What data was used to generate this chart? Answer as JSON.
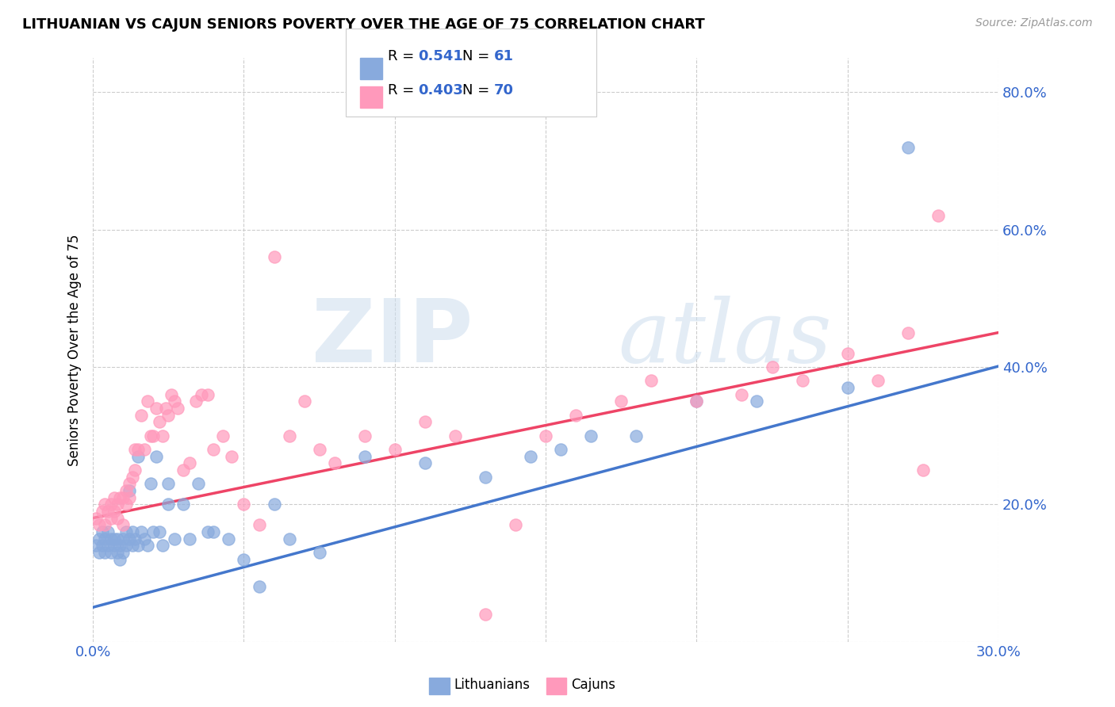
{
  "title": "LITHUANIAN VS CAJUN SENIORS POVERTY OVER THE AGE OF 75 CORRELATION CHART",
  "source": "Source: ZipAtlas.com",
  "ylabel": "Seniors Poverty Over the Age of 75",
  "xlim": [
    0.0,
    0.3
  ],
  "ylim": [
    0.0,
    0.85
  ],
  "x_ticks": [
    0.0,
    0.05,
    0.1,
    0.15,
    0.2,
    0.25,
    0.3
  ],
  "y_ticks_right": [
    0.0,
    0.2,
    0.4,
    0.6,
    0.8
  ],
  "legend_R1": "0.541",
  "legend_N1": "61",
  "legend_R2": "0.403",
  "legend_N2": "70",
  "blue_color": "#88AADD",
  "pink_color": "#FF99BB",
  "trend_blue": "#4477CC",
  "trend_pink": "#EE4466",
  "watermark_zip": "ZIP",
  "watermark_atlas": "atlas",
  "blue_intercept": 0.05,
  "blue_slope": 1.17,
  "pink_intercept": 0.18,
  "pink_slope": 0.9,
  "lithuanians_x": [
    0.001,
    0.002,
    0.002,
    0.003,
    0.003,
    0.004,
    0.004,
    0.005,
    0.005,
    0.006,
    0.006,
    0.007,
    0.007,
    0.008,
    0.008,
    0.009,
    0.009,
    0.01,
    0.01,
    0.011,
    0.011,
    0.012,
    0.012,
    0.013,
    0.013,
    0.014,
    0.015,
    0.015,
    0.016,
    0.017,
    0.018,
    0.019,
    0.02,
    0.021,
    0.022,
    0.023,
    0.025,
    0.025,
    0.027,
    0.03,
    0.032,
    0.035,
    0.038,
    0.04,
    0.045,
    0.05,
    0.055,
    0.06,
    0.065,
    0.075,
    0.09,
    0.11,
    0.13,
    0.145,
    0.155,
    0.165,
    0.18,
    0.2,
    0.22,
    0.25,
    0.27
  ],
  "lithuanians_y": [
    0.14,
    0.15,
    0.13,
    0.16,
    0.14,
    0.15,
    0.13,
    0.16,
    0.14,
    0.15,
    0.13,
    0.14,
    0.15,
    0.13,
    0.15,
    0.14,
    0.12,
    0.15,
    0.13,
    0.16,
    0.14,
    0.15,
    0.22,
    0.14,
    0.16,
    0.15,
    0.14,
    0.27,
    0.16,
    0.15,
    0.14,
    0.23,
    0.16,
    0.27,
    0.16,
    0.14,
    0.2,
    0.23,
    0.15,
    0.2,
    0.15,
    0.23,
    0.16,
    0.16,
    0.15,
    0.12,
    0.08,
    0.2,
    0.15,
    0.13,
    0.27,
    0.26,
    0.24,
    0.27,
    0.28,
    0.3,
    0.3,
    0.35,
    0.35,
    0.37,
    0.72
  ],
  "cajuns_x": [
    0.001,
    0.002,
    0.003,
    0.004,
    0.004,
    0.005,
    0.006,
    0.006,
    0.007,
    0.007,
    0.008,
    0.008,
    0.009,
    0.01,
    0.01,
    0.011,
    0.011,
    0.012,
    0.012,
    0.013,
    0.014,
    0.014,
    0.015,
    0.016,
    0.017,
    0.018,
    0.019,
    0.02,
    0.021,
    0.022,
    0.023,
    0.024,
    0.025,
    0.026,
    0.027,
    0.028,
    0.03,
    0.032,
    0.034,
    0.036,
    0.038,
    0.04,
    0.043,
    0.046,
    0.05,
    0.055,
    0.06,
    0.065,
    0.07,
    0.075,
    0.08,
    0.09,
    0.1,
    0.11,
    0.12,
    0.13,
    0.14,
    0.15,
    0.16,
    0.175,
    0.185,
    0.2,
    0.215,
    0.225,
    0.235,
    0.25,
    0.26,
    0.27,
    0.275,
    0.28
  ],
  "cajuns_y": [
    0.18,
    0.17,
    0.19,
    0.2,
    0.17,
    0.19,
    0.18,
    0.2,
    0.19,
    0.21,
    0.18,
    0.2,
    0.21,
    0.17,
    0.21,
    0.2,
    0.22,
    0.21,
    0.23,
    0.24,
    0.28,
    0.25,
    0.28,
    0.33,
    0.28,
    0.35,
    0.3,
    0.3,
    0.34,
    0.32,
    0.3,
    0.34,
    0.33,
    0.36,
    0.35,
    0.34,
    0.25,
    0.26,
    0.35,
    0.36,
    0.36,
    0.28,
    0.3,
    0.27,
    0.2,
    0.17,
    0.56,
    0.3,
    0.35,
    0.28,
    0.26,
    0.3,
    0.28,
    0.32,
    0.3,
    0.04,
    0.17,
    0.3,
    0.33,
    0.35,
    0.38,
    0.35,
    0.36,
    0.4,
    0.38,
    0.42,
    0.38,
    0.45,
    0.25,
    0.62
  ]
}
